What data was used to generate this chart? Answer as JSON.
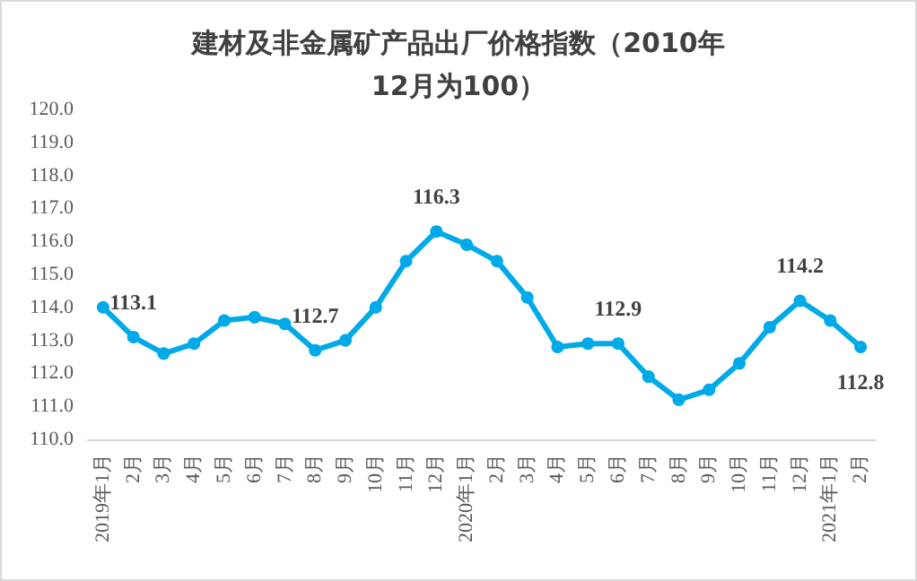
{
  "chart_data": {
    "type": "line",
    "title": "建材及非金属矿产品出厂价格指数（2010年12月为100）",
    "categories": [
      "2019年1月",
      "2月",
      "3月",
      "4月",
      "5月",
      "6月",
      "7月",
      "8月",
      "9月",
      "10月",
      "11月",
      "12月",
      "2020年1月",
      "2月",
      "3月",
      "4月",
      "5月",
      "6月",
      "7月",
      "8月",
      "9月",
      "10月",
      "11月",
      "12月",
      "2021年1月",
      "2月"
    ],
    "series": [
      {
        "color": "#00a9e8",
        "values": [
          114.0,
          113.1,
          112.6,
          112.9,
          113.6,
          113.7,
          113.5,
          112.7,
          113.0,
          114.0,
          115.4,
          116.3,
          115.9,
          115.4,
          114.3,
          112.8,
          112.9,
          112.9,
          111.9,
          111.2,
          111.5,
          112.3,
          113.4,
          114.2,
          113.6,
          112.8
        ],
        "value_labels": [
          null,
          "113.1",
          null,
          null,
          null,
          null,
          null,
          "112.7",
          null,
          null,
          null,
          "116.3",
          null,
          null,
          null,
          null,
          null,
          "112.9",
          null,
          null,
          null,
          null,
          null,
          "114.2",
          null,
          "112.8"
        ]
      }
    ],
    "ylim": [
      110,
      120
    ],
    "yticks": [
      {
        "value": 110,
        "label": "110.0"
      },
      {
        "value": 111,
        "label": "111.0"
      },
      {
        "value": 112,
        "label": "112.0"
      },
      {
        "value": 113,
        "label": "113.0"
      },
      {
        "value": 114,
        "label": "114.0"
      },
      {
        "value": 115,
        "label": "115.0"
      },
      {
        "value": 116,
        "label": "116.0"
      },
      {
        "value": 117,
        "label": "117.0"
      },
      {
        "value": 118,
        "label": "118.0"
      },
      {
        "value": 119,
        "label": "119.0"
      },
      {
        "value": 120,
        "label": "120.0"
      }
    ],
    "grid": false,
    "marker": "circle",
    "line_style": "solid"
  }
}
